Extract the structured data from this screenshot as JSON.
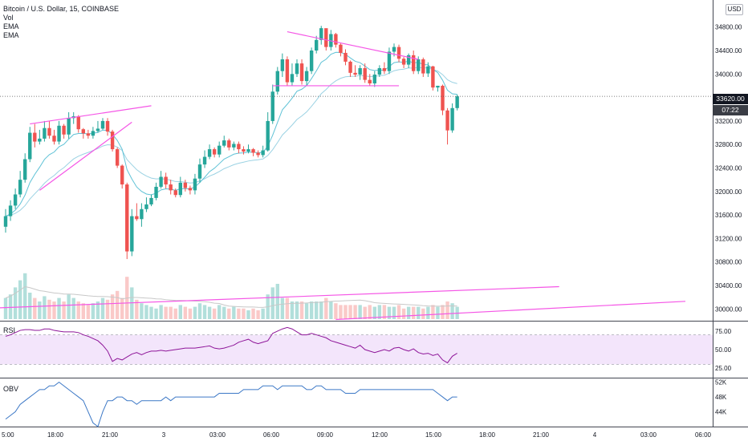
{
  "header": {
    "symbol": "Bitcoin / U.S. Dollar, 15, COINBASE",
    "indicators": [
      "Vol",
      "EMA",
      "EMA"
    ],
    "currency": "USD"
  },
  "badges": {
    "last_price": "33620.00",
    "countdown": "07:22"
  },
  "panes": {
    "rsi_label": "RSI",
    "obv_label": "OBV"
  },
  "colors": {
    "up": "#26a69a",
    "down": "#ef5350",
    "trendline": "#f556e6",
    "ema_fast": "#5fc2d6",
    "ema_slow": "#9bd2e3",
    "rsi_line": "#8e1599",
    "rsi_band": "#f3e5fb",
    "obv_line": "#3c78c6",
    "volume_up": "#b2dfdb",
    "volume_down": "#fac9c8",
    "volume_ma": "#c8c8c8"
  },
  "chart_data": {
    "type": "candlestick",
    "title": "Bitcoin / U.S. Dollar, 15, COINBASE",
    "price_axis": {
      "ticks": [
        "34800.00",
        "34400.00",
        "34000.00",
        "33600.00",
        "33200.00",
        "32800.00",
        "32400.00",
        "32000.00",
        "31600.00",
        "31200.00",
        "30800.00",
        "30400.00",
        "30000.00"
      ],
      "range": [
        29800,
        35260
      ]
    },
    "time_axis": {
      "ticks": [
        "5:00",
        "18:00",
        "21:00",
        "3",
        "03:00",
        "06:00",
        "09:00",
        "12:00",
        "15:00",
        "18:00",
        "21:00",
        "4",
        "03:00",
        "06:00"
      ]
    },
    "candles": {
      "open": [
        31400,
        31580,
        31760,
        31950,
        32200,
        32550,
        33000,
        32850,
        32900,
        33080,
        32950,
        32850,
        33120,
        32970,
        33250,
        33280,
        33060,
        32990,
        32950,
        33030,
        33070,
        33200,
        33020,
        32720,
        32440,
        32120,
        30980,
        31580,
        31530,
        31700,
        31780,
        31890,
        32080,
        32250,
        32120,
        32020,
        31940,
        32150,
        32060,
        32020,
        32220,
        32460,
        32590,
        32720,
        32630,
        32780,
        32870,
        32750,
        32810,
        32720,
        32680,
        32720,
        32660,
        32620,
        32700,
        33200,
        33700,
        34050,
        34250,
        33860,
        34000,
        34180,
        33880,
        34050,
        34400,
        34580,
        34780,
        34460,
        34680,
        34500,
        34360,
        34210,
        34020,
        33990,
        34100,
        33900,
        33840,
        33990,
        34100,
        34050,
        34380,
        34460,
        34260,
        34160,
        34320,
        34050,
        34250,
        34010,
        34130,
        33770,
        33800,
        33380,
        33040,
        33420
      ],
      "close": [
        31580,
        31760,
        31950,
        32200,
        32550,
        33000,
        32850,
        32900,
        33080,
        32950,
        32850,
        33120,
        32970,
        33250,
        33280,
        33060,
        32990,
        32950,
        33030,
        33070,
        33200,
        33020,
        32720,
        32440,
        32120,
        30980,
        31580,
        31530,
        31700,
        31780,
        31890,
        32080,
        32250,
        32120,
        32020,
        31940,
        32150,
        32060,
        32020,
        32220,
        32460,
        32590,
        32720,
        32630,
        32780,
        32870,
        32750,
        32810,
        32720,
        32680,
        32720,
        32660,
        32620,
        32700,
        33200,
        33700,
        34050,
        34250,
        33860,
        34000,
        34180,
        33880,
        34050,
        34400,
        34580,
        34780,
        34460,
        34680,
        34500,
        34360,
        34210,
        34020,
        33990,
        34100,
        33900,
        33840,
        33990,
        34100,
        34050,
        34380,
        34460,
        34260,
        34160,
        34320,
        34050,
        34250,
        34010,
        34130,
        33770,
        33800,
        33380,
        33040,
        33420,
        33620
      ],
      "high": [
        31700,
        31850,
        32050,
        32350,
        32650,
        33100,
        33150,
        33050,
        33200,
        33200,
        33050,
        33200,
        33150,
        33350,
        33350,
        33300,
        33080,
        33050,
        33100,
        33200,
        33250,
        33250,
        33050,
        32750,
        32460,
        32150,
        31700,
        31800,
        31800,
        31900,
        31950,
        32150,
        32350,
        32320,
        32200,
        32050,
        32250,
        32200,
        32100,
        32300,
        32560,
        32700,
        32800,
        32750,
        32850,
        32950,
        32900,
        32850,
        32850,
        32770,
        32800,
        32740,
        32700,
        32780,
        33350,
        33820,
        34120,
        34350,
        34300,
        34180,
        34250,
        34250,
        34120,
        34450,
        34650,
        34820,
        34760,
        34750,
        34700,
        34520,
        34420,
        34230,
        34150,
        34150,
        34180,
        34000,
        34050,
        34150,
        34200,
        34450,
        34520,
        34500,
        34290,
        34350,
        34400,
        34300,
        34280,
        34200,
        34140,
        33800,
        33820,
        33420,
        33500,
        33650
      ],
      "low": [
        31300,
        31500,
        31700,
        31900,
        32150,
        32500,
        32750,
        32800,
        32850,
        32900,
        32800,
        32800,
        32900,
        32900,
        33150,
        33000,
        32900,
        32900,
        32900,
        33000,
        33050,
        32950,
        32680,
        32400,
        32050,
        30850,
        30900,
        31500,
        31400,
        31650,
        31750,
        31850,
        32050,
        32050,
        31950,
        31900,
        31900,
        32000,
        31950,
        31950,
        32150,
        32400,
        32550,
        32580,
        32580,
        32750,
        32700,
        32700,
        32650,
        32630,
        32650,
        32600,
        32580,
        32580,
        32680,
        33150,
        33650,
        33950,
        33800,
        33800,
        33950,
        33820,
        33800,
        34000,
        34350,
        34500,
        34400,
        34400,
        34450,
        34300,
        34150,
        33950,
        33950,
        33900,
        33850,
        33800,
        33780,
        33950,
        34000,
        34000,
        34300,
        34200,
        34100,
        34100,
        34000,
        34000,
        33950,
        33950,
        33720,
        33700,
        33300,
        32800,
        33000,
        33380
      ]
    },
    "rsi": {
      "ticks": [
        "75.00",
        "50.00",
        "25.00"
      ],
      "values": [
        68,
        70,
        73,
        76,
        77,
        77,
        76,
        76,
        78,
        78,
        76,
        75,
        74,
        74,
        74,
        73,
        70,
        68,
        65,
        62,
        56,
        48,
        34,
        38,
        36,
        40,
        44,
        46,
        43,
        46,
        48,
        48,
        49,
        48,
        49,
        50,
        51,
        52,
        52,
        52,
        53,
        54,
        55,
        52,
        51,
        52,
        54,
        56,
        60,
        62,
        64,
        60,
        58,
        60,
        62,
        72,
        75,
        78,
        80,
        78,
        74,
        70,
        70,
        72,
        70,
        68,
        66,
        62,
        60,
        58,
        56,
        54,
        52,
        56,
        50,
        48,
        46,
        48,
        50,
        48,
        52,
        53,
        50,
        48,
        51,
        46,
        44,
        45,
        42,
        44,
        36,
        32,
        41,
        45
      ]
    },
    "obv": {
      "ticks": [
        "52K",
        "48K",
        "44K"
      ],
      "values": [
        42,
        43,
        44,
        46,
        47,
        48,
        49,
        50,
        50,
        51,
        51,
        52,
        51,
        50,
        49,
        48,
        47,
        44,
        41,
        40,
        44,
        47,
        47,
        48,
        48,
        47,
        47,
        46,
        47,
        47,
        47,
        47,
        47,
        48,
        47,
        48,
        48,
        48,
        48,
        48,
        48,
        48,
        48,
        48,
        49,
        49,
        49,
        49,
        49,
        50,
        50,
        50,
        50,
        51,
        51,
        51,
        50,
        51,
        51,
        51,
        51,
        51,
        50,
        50,
        51,
        51,
        50,
        50,
        50,
        50,
        49,
        49,
        49,
        50,
        50,
        50,
        50,
        50,
        50,
        50,
        50,
        50,
        50,
        50,
        50,
        50,
        50,
        50,
        50,
        49,
        48,
        47,
        48,
        48
      ]
    },
    "volume": {
      "values": [
        1.2,
        1.4,
        1.8,
        2.2,
        2.6,
        1.5,
        1.2,
        1.0,
        1.3,
        1.1,
        1.0,
        1.2,
        1.0,
        1.4,
        1.2,
        1.0,
        0.9,
        0.8,
        0.9,
        1.0,
        1.2,
        1.1,
        1.4,
        1.6,
        1.2,
        2.4,
        1.8,
        1.1,
        0.9,
        0.8,
        0.7,
        0.6,
        0.8,
        0.7,
        0.7,
        0.6,
        0.8,
        0.7,
        0.6,
        0.7,
        0.9,
        0.8,
        0.7,
        0.6,
        0.8,
        0.7,
        0.6,
        0.7,
        0.6,
        0.6,
        0.5,
        0.6,
        0.5,
        0.6,
        1.4,
        1.8,
        2.0,
        1.2,
        1.2,
        1.0,
        1.0,
        1.0,
        0.9,
        1.0,
        1.0,
        1.0,
        1.2,
        1.0,
        0.9,
        0.8,
        0.8,
        0.8,
        0.8,
        0.8,
        0.7,
        0.8,
        0.7,
        0.8,
        0.8,
        0.7,
        0.7,
        0.8,
        0.6,
        0.7,
        0.7,
        0.7,
        0.6,
        0.7,
        0.8,
        0.7,
        0.8,
        1.0,
        0.9,
        0.7
      ]
    },
    "trendlines": [
      {
        "name": "rising-wedge-upper",
        "points": [
          [
            5,
            33150
          ],
          [
            30,
            33460
          ]
        ]
      },
      {
        "name": "rising-wedge-lower",
        "points": [
          [
            7,
            32020
          ],
          [
            26,
            33180
          ]
        ]
      },
      {
        "name": "descending-resistance",
        "points": [
          [
            58,
            34720
          ],
          [
            85,
            34250
          ]
        ]
      },
      {
        "name": "horizontal-support",
        "points": [
          [
            55,
            33800
          ],
          [
            81,
            33800
          ]
        ]
      }
    ]
  }
}
